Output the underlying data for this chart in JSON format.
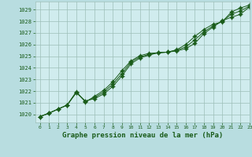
{
  "title": "Graphe pression niveau de la mer (hPa)",
  "bg_color": "#b8dde0",
  "plot_bg_color": "#d0ecee",
  "line_color": "#1a5c1a",
  "grid_color": "#9dbfb8",
  "text_color": "#1a5c1a",
  "xlim": [
    -0.5,
    23
  ],
  "ylim": [
    1019.3,
    1029.7
  ],
  "xticks": [
    0,
    1,
    2,
    3,
    4,
    5,
    6,
    7,
    8,
    9,
    10,
    11,
    12,
    13,
    14,
    15,
    16,
    17,
    18,
    19,
    20,
    21,
    22,
    23
  ],
  "ytick_labels": [
    "1020",
    "1021",
    "1022",
    "1023",
    "1024",
    "1025",
    "1026",
    "1027",
    "1028",
    "1029"
  ],
  "yticks": [
    1020,
    1021,
    1022,
    1023,
    1024,
    1025,
    1026,
    1027,
    1028,
    1029
  ],
  "series1_x": [
    0,
    1,
    2,
    3,
    4,
    5,
    6,
    7,
    8,
    9,
    10,
    11,
    12,
    13,
    14,
    15,
    16,
    17,
    18,
    19,
    20,
    21,
    22,
    23
  ],
  "series1_y": [
    1019.8,
    1020.1,
    1020.45,
    1020.8,
    1021.85,
    1021.15,
    1021.35,
    1021.75,
    1022.4,
    1023.3,
    1024.35,
    1024.85,
    1025.1,
    1025.3,
    1025.35,
    1025.45,
    1025.65,
    1026.1,
    1026.95,
    1027.5,
    1028.05,
    1028.35,
    1028.6,
    1029.25
  ],
  "series2_x": [
    0,
    1,
    2,
    3,
    4,
    5,
    6,
    7,
    8,
    9,
    10,
    11,
    12,
    13,
    14,
    15,
    16,
    17,
    18,
    19,
    20,
    21,
    22,
    23
  ],
  "series2_y": [
    1019.8,
    1020.1,
    1020.45,
    1020.8,
    1021.95,
    1021.05,
    1021.55,
    1022.05,
    1022.8,
    1023.75,
    1024.6,
    1025.05,
    1025.25,
    1025.3,
    1025.35,
    1025.55,
    1026.0,
    1026.7,
    1027.3,
    1027.75,
    1027.95,
    1028.8,
    1029.15,
    1029.4
  ],
  "series3_x": [
    0,
    1,
    2,
    3,
    4,
    5,
    6,
    7,
    8,
    9,
    10,
    11,
    12,
    13,
    14,
    15,
    16,
    17,
    18,
    19,
    20,
    21,
    22,
    23
  ],
  "series3_y": [
    1019.8,
    1020.1,
    1020.45,
    1020.8,
    1021.9,
    1021.1,
    1021.45,
    1021.9,
    1022.6,
    1023.5,
    1024.5,
    1024.95,
    1025.15,
    1025.3,
    1025.35,
    1025.5,
    1025.8,
    1026.4,
    1027.1,
    1027.6,
    1028.0,
    1028.6,
    1028.9,
    1029.3
  ]
}
